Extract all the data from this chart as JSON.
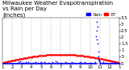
{
  "title": "Milwaukee Weather Evapotranspiration\nvs Rain per Day\n(Inches)",
  "background_color": "#ffffff",
  "et_color": "#ff0000",
  "rain_color": "#0000ff",
  "legend_et": "ET",
  "legend_rain": "Rain",
  "num_days": 365,
  "ylim": [
    0,
    3.5
  ],
  "yticks": [
    0,
    0.5,
    1.0,
    1.5,
    2.0,
    2.5,
    3.0,
    3.5
  ],
  "ytick_labels": [
    "0",
    ".5",
    "1",
    "1.5",
    "2",
    "2.5",
    "3",
    "3.5"
  ],
  "xticks": [
    1,
    32,
    60,
    91,
    121,
    152,
    182,
    213,
    244,
    274,
    305,
    335,
    365
  ],
  "xtick_labels": [
    "1",
    "2",
    "3",
    "4",
    "5",
    "6",
    "7",
    "8",
    "9",
    "10",
    "11",
    "12",
    "1"
  ],
  "grid_positions": [
    32,
    60,
    91,
    121,
    152,
    182,
    213,
    244,
    274,
    305,
    335
  ],
  "title_fontsize": 5,
  "tick_fontsize": 4,
  "dot_size": 1.5
}
